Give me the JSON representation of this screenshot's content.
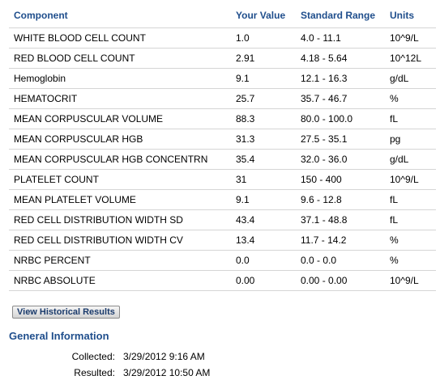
{
  "table": {
    "headers": [
      "Component",
      "Your Value",
      "Standard Range",
      "Units"
    ],
    "rows": [
      [
        "WHITE BLOOD CELL COUNT",
        "1.0",
        "4.0 - 11.1",
        "10^9/L"
      ],
      [
        "RED BLOOD CELL COUNT",
        "2.91",
        "4.18 - 5.64",
        "10^12L"
      ],
      [
        "Hemoglobin",
        "9.1",
        "12.1 - 16.3",
        "g/dL"
      ],
      [
        "HEMATOCRIT",
        "25.7",
        "35.7 - 46.7",
        "%"
      ],
      [
        "MEAN CORPUSCULAR VOLUME",
        "88.3",
        "80.0 - 100.0",
        "fL"
      ],
      [
        "MEAN CORPUSCULAR HGB",
        "31.3",
        "27.5 - 35.1",
        "pg"
      ],
      [
        "MEAN CORPUSCULAR HGB CONCENTRN",
        "35.4",
        "32.0 - 36.0",
        "g/dL"
      ],
      [
        "PLATELET COUNT",
        "31",
        "150 - 400",
        "10^9/L"
      ],
      [
        "MEAN PLATELET VOLUME",
        "9.1",
        "9.6 - 12.8",
        "fL"
      ],
      [
        "RED CELL DISTRIBUTION WIDTH SD",
        "43.4",
        "37.1 - 48.8",
        "fL"
      ],
      [
        "RED CELL DISTRIBUTION WIDTH CV",
        "13.4",
        "11.7 - 14.2",
        "%"
      ],
      [
        "NRBC PERCENT",
        "0.0",
        "0.0 - 0.0",
        "%"
      ],
      [
        "NRBC ABSOLUTE",
        "0.00",
        "0.00 - 0.00",
        "10^9/L"
      ]
    ]
  },
  "buttons": {
    "historical": "View Historical Results"
  },
  "general_info": {
    "title": "General Information",
    "collected_label": "Collected:",
    "collected_value": "3/29/2012  9:16 AM",
    "resulted_label": "Resulted:",
    "resulted_value": "3/29/2012 10:50 AM"
  },
  "colors": {
    "header_blue": "#1f4e8c",
    "row_divider": "#d5d5d5"
  }
}
